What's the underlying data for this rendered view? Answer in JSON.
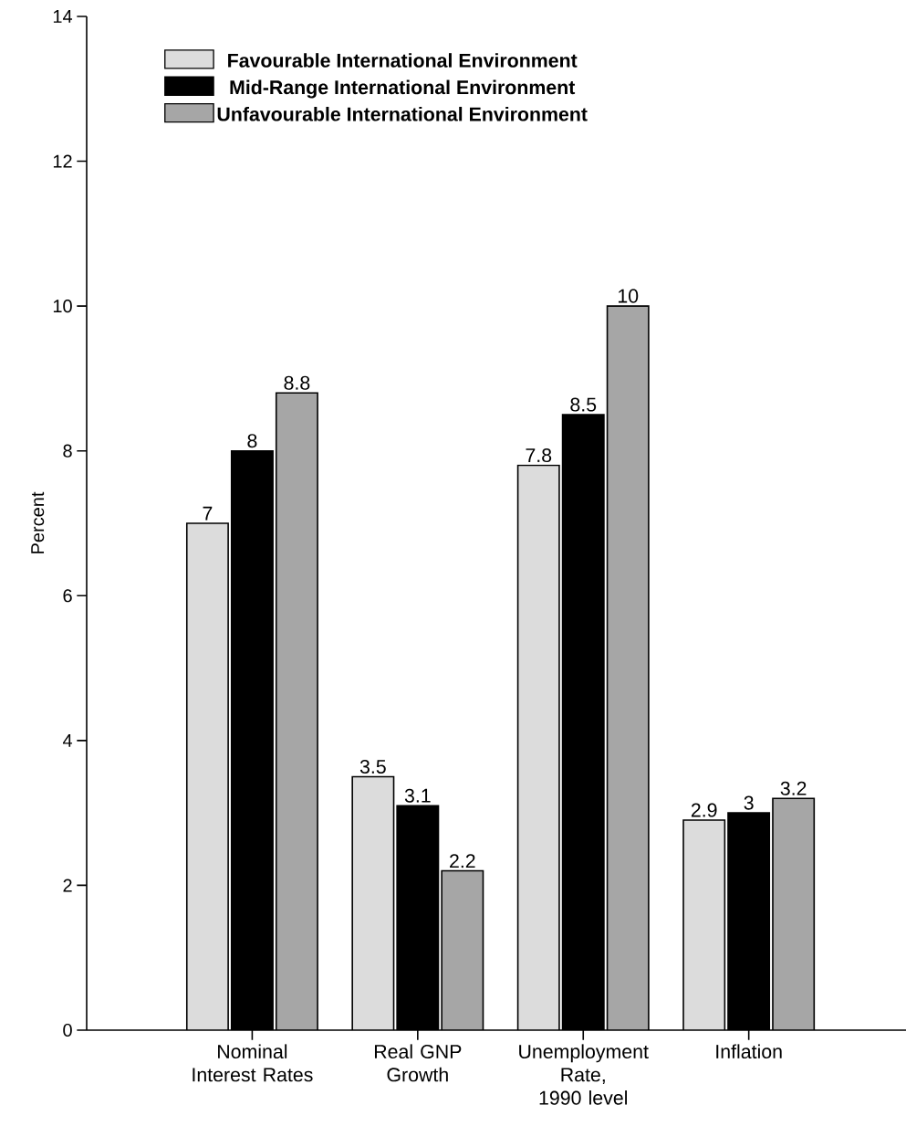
{
  "chart_data": {
    "type": "bar",
    "categories": [
      "Nominal Interest Rates",
      "Real GNP Growth",
      "Unemployment Rate, 1990 level",
      "Inflation"
    ],
    "series": [
      {
        "name": "Favourable International Environment",
        "color": "#dcdcdc",
        "values": [
          7,
          3.5,
          7.8,
          2.9
        ]
      },
      {
        "name": "Mid-Range International Environment",
        "color": "#000000",
        "values": [
          8,
          3.1,
          8.5,
          3
        ]
      },
      {
        "name": "Unfavourable International Environment",
        "color": "#a6a6a6",
        "values": [
          8.8,
          2.2,
          10,
          3.2
        ]
      }
    ],
    "ylabel": "Percent",
    "ylim": [
      0,
      14
    ],
    "yticks": [
      0,
      2,
      4,
      6,
      8,
      10,
      12,
      14
    ],
    "data_labels": true,
    "legend": "top left",
    "grid": false
  }
}
